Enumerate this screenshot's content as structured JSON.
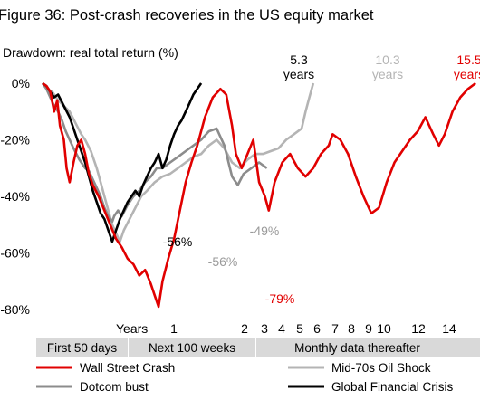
{
  "chart_data": {
    "type": "line",
    "title": "Figure 36: Post-crash recoveries in the US equity market",
    "ylabel": "Drawdown: real total return (%)",
    "ylim": [
      -80,
      0
    ],
    "y_ticks": [
      "0%",
      "-20%",
      "-40%",
      "-60%",
      "-80%"
    ],
    "x_axis_label": "Years",
    "x_ticks": [
      "1",
      "2",
      "3",
      "4",
      "5",
      "6",
      "7",
      "8",
      "9",
      "10",
      "12",
      "14"
    ],
    "x_segments": [
      {
        "label": "First 50 days"
      },
      {
        "label": "Next 100 weeks"
      },
      {
        "label": "Monthly data thereafter"
      }
    ],
    "grid": false,
    "legend_position": "bottom",
    "series": [
      {
        "name": "Wall Street Crash",
        "color": "#e10000",
        "recovery_label": [
          "15.5",
          "years"
        ],
        "trough_label": "-79%",
        "points": [
          [
            0,
            0
          ],
          [
            0.1,
            -1
          ],
          [
            0.2,
            -3
          ],
          [
            0.3,
            -10
          ],
          [
            0.38,
            -6
          ],
          [
            0.45,
            -15
          ],
          [
            0.55,
            -20
          ],
          [
            0.62,
            -30
          ],
          [
            0.7,
            -35
          ],
          [
            0.8,
            -28
          ],
          [
            0.9,
            -22
          ],
          [
            1.0,
            -20
          ],
          [
            1.1,
            -25
          ],
          [
            1.2,
            -32
          ],
          [
            1.3,
            -36
          ],
          [
            1.45,
            -40
          ],
          [
            1.6,
            -45
          ],
          [
            1.75,
            -50
          ],
          [
            1.9,
            -55
          ],
          [
            2.05,
            -58
          ],
          [
            2.2,
            -62
          ],
          [
            2.35,
            -64
          ],
          [
            2.5,
            -68
          ],
          [
            2.65,
            -66
          ],
          [
            2.8,
            -71
          ],
          [
            2.9,
            -75
          ],
          [
            3.0,
            -79
          ],
          [
            3.1,
            -70
          ],
          [
            3.25,
            -62
          ],
          [
            3.4,
            -55
          ],
          [
            3.55,
            -45
          ],
          [
            3.7,
            -35
          ],
          [
            3.85,
            -28
          ],
          [
            4.0,
            -22
          ],
          [
            4.2,
            -12
          ],
          [
            4.4,
            -5
          ],
          [
            4.6,
            -2
          ],
          [
            4.75,
            -4
          ],
          [
            4.9,
            -15
          ],
          [
            5.0,
            -25
          ],
          [
            5.15,
            -30
          ],
          [
            5.3,
            -25
          ],
          [
            5.45,
            -20
          ],
          [
            5.6,
            -35
          ],
          [
            5.75,
            -40
          ],
          [
            5.85,
            -45
          ],
          [
            6.0,
            -35
          ],
          [
            6.2,
            -28
          ],
          [
            6.4,
            -25
          ],
          [
            6.6,
            -30
          ],
          [
            6.8,
            -33
          ],
          [
            7.0,
            -30
          ],
          [
            7.2,
            -25
          ],
          [
            7.4,
            -22
          ],
          [
            7.5,
            -18
          ],
          [
            7.7,
            -20
          ],
          [
            7.9,
            -25
          ],
          [
            8.1,
            -33
          ],
          [
            8.3,
            -40
          ],
          [
            8.5,
            -46
          ],
          [
            8.7,
            -44
          ],
          [
            8.9,
            -35
          ],
          [
            9.1,
            -28
          ],
          [
            9.3,
            -24
          ],
          [
            9.5,
            -20
          ],
          [
            9.7,
            -17
          ],
          [
            9.9,
            -12
          ],
          [
            10.1,
            -18
          ],
          [
            10.25,
            -22
          ],
          [
            10.4,
            -18
          ],
          [
            10.6,
            -10
          ],
          [
            10.8,
            -5
          ],
          [
            11.0,
            -2
          ],
          [
            11.2,
            0
          ]
        ]
      },
      {
        "name": "Dotcom  bust",
        "color": "#8c8c8c",
        "trough_label": "-49%",
        "points": [
          [
            0,
            0
          ],
          [
            0.1,
            -2
          ],
          [
            0.2,
            -5
          ],
          [
            0.3,
            -8
          ],
          [
            0.4,
            -10
          ],
          [
            0.5,
            -13
          ],
          [
            0.6,
            -17
          ],
          [
            0.7,
            -20
          ],
          [
            0.8,
            -23
          ],
          [
            0.95,
            -27
          ],
          [
            1.1,
            -30
          ],
          [
            1.2,
            -31
          ],
          [
            1.3,
            -34
          ],
          [
            1.4,
            -37
          ],
          [
            1.5,
            -40
          ],
          [
            1.6,
            -44
          ],
          [
            1.7,
            -47
          ],
          [
            1.8,
            -49
          ],
          [
            1.85,
            -47
          ],
          [
            1.95,
            -45
          ],
          [
            2.05,
            -47
          ],
          [
            2.2,
            -43
          ],
          [
            2.35,
            -40
          ],
          [
            2.5,
            -38
          ],
          [
            2.65,
            -35
          ],
          [
            2.8,
            -33
          ],
          [
            2.95,
            -30
          ],
          [
            3.1,
            -30
          ],
          [
            3.3,
            -28
          ],
          [
            3.5,
            -26
          ],
          [
            3.7,
            -24
          ],
          [
            3.9,
            -22
          ],
          [
            4.1,
            -20
          ],
          [
            4.3,
            -17
          ],
          [
            4.5,
            -16
          ],
          [
            4.7,
            -22
          ],
          [
            4.9,
            -33
          ],
          [
            5.05,
            -36
          ],
          [
            5.2,
            -32
          ],
          [
            5.4,
            -30
          ],
          [
            5.6,
            -28
          ],
          [
            5.8,
            -30
          ]
        ]
      },
      {
        "name": "Mid-70s Oil Shock",
        "color": "#b4b4b4",
        "recovery_label": [
          "10.3",
          "years"
        ],
        "trough_label": "-56%",
        "points": [
          [
            0,
            0
          ],
          [
            0.1,
            -2
          ],
          [
            0.25,
            -3
          ],
          [
            0.4,
            -6
          ],
          [
            0.55,
            -8
          ],
          [
            0.7,
            -10
          ],
          [
            0.85,
            -14
          ],
          [
            1.0,
            -18
          ],
          [
            1.1,
            -20
          ],
          [
            1.25,
            -24
          ],
          [
            1.4,
            -30
          ],
          [
            1.5,
            -35
          ],
          [
            1.6,
            -40
          ],
          [
            1.7,
            -45
          ],
          [
            1.8,
            -50
          ],
          [
            1.9,
            -53
          ],
          [
            2.0,
            -56
          ],
          [
            2.1,
            -52
          ],
          [
            2.25,
            -48
          ],
          [
            2.4,
            -44
          ],
          [
            2.55,
            -40
          ],
          [
            2.7,
            -38
          ],
          [
            2.9,
            -35
          ],
          [
            3.1,
            -33
          ],
          [
            3.3,
            -32
          ],
          [
            3.5,
            -30
          ],
          [
            3.7,
            -28
          ],
          [
            3.9,
            -26
          ],
          [
            4.1,
            -25
          ],
          [
            4.3,
            -22
          ],
          [
            4.5,
            -20
          ],
          [
            4.7,
            -23
          ],
          [
            4.9,
            -28
          ],
          [
            5.1,
            -30
          ],
          [
            5.3,
            -27
          ],
          [
            5.5,
            -25
          ],
          [
            5.7,
            -25
          ],
          [
            5.9,
            -24
          ],
          [
            6.1,
            -23
          ],
          [
            6.3,
            -20
          ],
          [
            6.5,
            -18
          ],
          [
            6.7,
            -16
          ],
          [
            6.8,
            -10
          ],
          [
            6.9,
            -5
          ],
          [
            7.0,
            0
          ]
        ]
      },
      {
        "name": "Global Financial Crisis",
        "color": "#000000",
        "recovery_label": [
          "5.3",
          "years"
        ],
        "trough_label": "-56%",
        "points": [
          [
            0,
            0
          ],
          [
            0.1,
            -1
          ],
          [
            0.2,
            -3
          ],
          [
            0.3,
            -5
          ],
          [
            0.4,
            -4
          ],
          [
            0.55,
            -8
          ],
          [
            0.7,
            -12
          ],
          [
            0.8,
            -16
          ],
          [
            0.9,
            -20
          ],
          [
            1.0,
            -24
          ],
          [
            1.1,
            -28
          ],
          [
            1.2,
            -33
          ],
          [
            1.3,
            -38
          ],
          [
            1.4,
            -42
          ],
          [
            1.5,
            -46
          ],
          [
            1.6,
            -48
          ],
          [
            1.7,
            -52
          ],
          [
            1.8,
            -56
          ],
          [
            1.9,
            -52
          ],
          [
            2.0,
            -48
          ],
          [
            2.1,
            -45
          ],
          [
            2.2,
            -42
          ],
          [
            2.3,
            -40
          ],
          [
            2.4,
            -38
          ],
          [
            2.5,
            -40
          ],
          [
            2.6,
            -36
          ],
          [
            2.7,
            -33
          ],
          [
            2.8,
            -30
          ],
          [
            2.9,
            -28
          ],
          [
            3.0,
            -25
          ],
          [
            3.1,
            -30
          ],
          [
            3.2,
            -27
          ],
          [
            3.3,
            -22
          ],
          [
            3.4,
            -18
          ],
          [
            3.5,
            -15
          ],
          [
            3.6,
            -13
          ],
          [
            3.7,
            -10
          ],
          [
            3.8,
            -7
          ],
          [
            3.9,
            -4
          ],
          [
            4.0,
            -2
          ],
          [
            4.1,
            0
          ]
        ]
      }
    ]
  }
}
